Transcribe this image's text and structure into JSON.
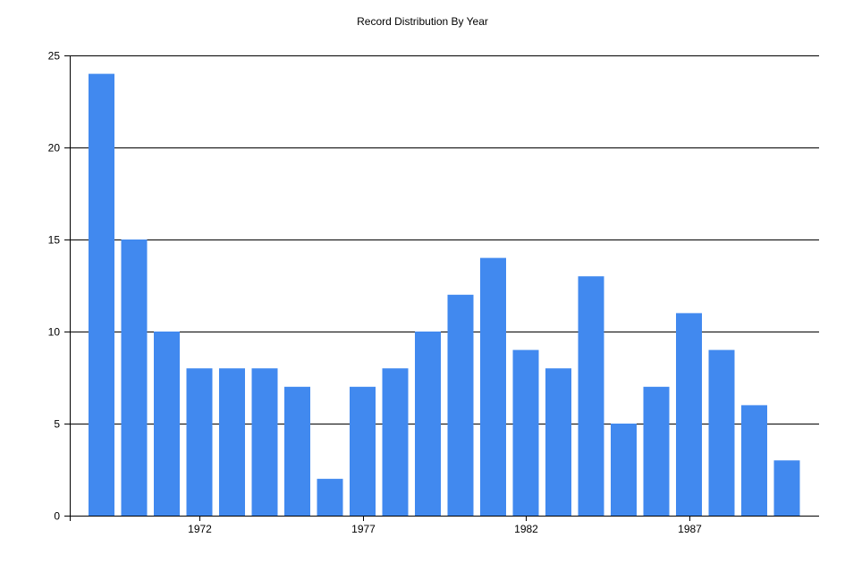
{
  "chart_data": {
    "type": "bar",
    "title": "Record Distribution By Year",
    "xlabel": "",
    "ylabel": "",
    "x": [
      1969,
      1970,
      1971,
      1972,
      1973,
      1974,
      1975,
      1976,
      1977,
      1978,
      1979,
      1980,
      1981,
      1982,
      1983,
      1984,
      1985,
      1986,
      1987,
      1988,
      1989,
      1990
    ],
    "values": [
      24,
      15,
      10,
      8,
      8,
      8,
      7,
      2,
      7,
      8,
      10,
      12,
      14,
      9,
      8,
      13,
      5,
      7,
      11,
      9,
      6,
      3
    ],
    "ylim": [
      0,
      25
    ],
    "yticks": [
      0,
      5,
      10,
      15,
      20,
      25
    ],
    "xticks": [
      1972,
      1977,
      1982,
      1987
    ],
    "grid": true,
    "bar_color": "#4189ef",
    "gridline_color": "#000000"
  }
}
